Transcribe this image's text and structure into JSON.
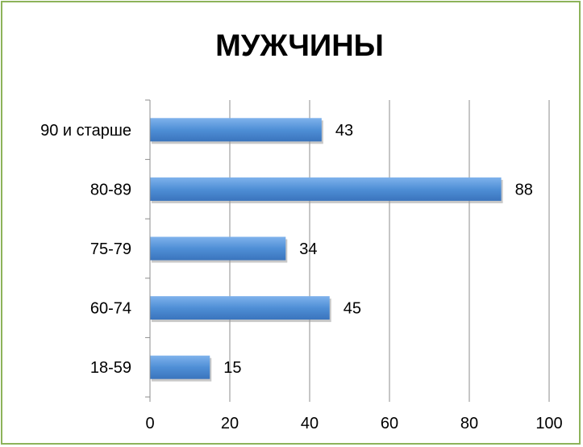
{
  "chart_data": {
    "type": "bar",
    "orientation": "horizontal",
    "title": "МУЖЧИНЫ",
    "categories": [
      "90 и старше",
      "80-89",
      "75-79",
      "60-74",
      "18-59"
    ],
    "values": [
      43,
      88,
      34,
      45,
      15
    ],
    "xlim": [
      0,
      100
    ],
    "x_ticks": [
      "0",
      "20",
      "40",
      "60",
      "80",
      "100"
    ],
    "grid": "vertical",
    "legend": "none",
    "bar_color": "#4f8fd6",
    "frame_color": "#8db35a"
  }
}
